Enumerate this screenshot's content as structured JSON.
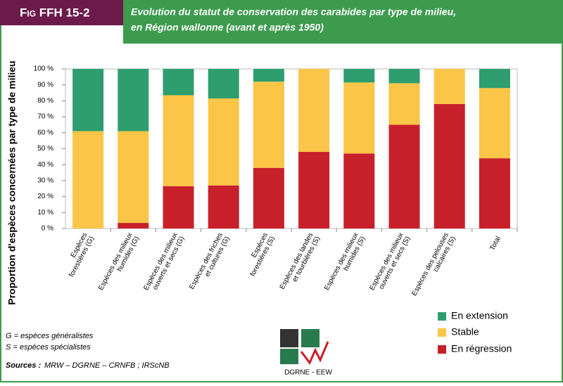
{
  "chart_data": {
    "type": "stacked_bar",
    "figure_code": "Fig FFH 15-2",
    "title": [
      "Evolution du statut de conservation des carabides par type de milieu,",
      "en Région wallonne (avant et après 1950)"
    ],
    "y_label": "Proportion d'espèces concernées par type de milieu",
    "categories": [
      [
        "Espèces",
        "forestières (G)"
      ],
      [
        "Espèces des milieux",
        "humides (G)"
      ],
      [
        "Espèces des milieux",
        "ouverts et secs (G)"
      ],
      [
        "Espèces des friches",
        "et cultures (G)"
      ],
      [
        "Espèces",
        "forestières (S)"
      ],
      [
        "Espèces des landes",
        "et tourbières (S)"
      ],
      [
        "Espèces des milieux",
        "humides (S)"
      ],
      [
        "Espèces des milieux",
        "ouverts et secs (S)"
      ],
      [
        "Espèces des pelouses",
        "calcaires (S)"
      ],
      [
        "Total"
      ]
    ],
    "series": [
      {
        "name": "En régression",
        "color": "#c8202a",
        "values": [
          0,
          3.5,
          26.5,
          27,
          38,
          48,
          47,
          65,
          78,
          44
        ]
      },
      {
        "name": "Stable",
        "color": "#fbc547",
        "values": [
          61,
          57.5,
          57,
          54.5,
          54,
          52,
          44.5,
          26,
          22,
          44
        ]
      },
      {
        "name": "En extension",
        "color": "#2e9e6e",
        "values": [
          39,
          39,
          16.5,
          18.5,
          8,
          0,
          8.5,
          9,
          0,
          12
        ]
      }
    ],
    "ylim": [
      0,
      100
    ],
    "yticks": [
      {
        "value": 0,
        "label": "0 %"
      },
      {
        "value": 10,
        "label": "10 %"
      },
      {
        "value": 20,
        "label": "20 %"
      },
      {
        "value": 30,
        "label": "30 %"
      },
      {
        "value": 40,
        "label": "40 %"
      },
      {
        "value": 50,
        "label": "50 %"
      },
      {
        "value": 60,
        "label": "60 %"
      },
      {
        "value": 70,
        "label": "70 %"
      },
      {
        "value": 80,
        "label": "80 %"
      },
      {
        "value": 90,
        "label": "90 %"
      },
      {
        "value": 100,
        "label": "100 %"
      }
    ],
    "grid": false,
    "notes": [
      "G = espèces généralistes",
      "S = espèces spécialistes"
    ],
    "source_label": "Sources :",
    "source": "MRW – DGRNE – CRNFB ; IRScNB",
    "logo_text": "DGRNE - EEW"
  }
}
